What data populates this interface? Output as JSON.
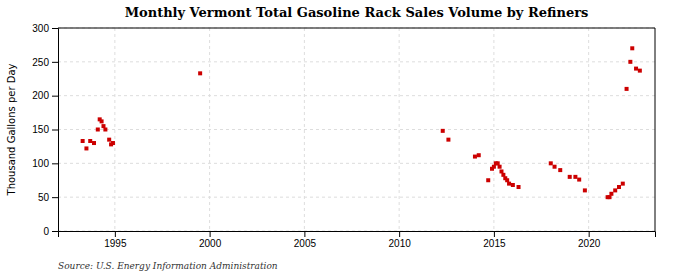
{
  "chart_data": {
    "type": "scatter",
    "title": "Monthly Vermont Total Gasoline Rack Sales Volume by Refiners",
    "ylabel": "Thousand Gallons per Day",
    "annotations": [
      "Source: U.S. Energy Information Administration"
    ],
    "color": "#cc0000",
    "marker": "square",
    "grid": true,
    "xlim": [
      1992.0,
      2023.5
    ],
    "ylim": [
      0,
      300
    ],
    "xticks": [
      1995,
      2000,
      2005,
      2010,
      2015,
      2020
    ],
    "yticks": [
      0,
      50,
      100,
      150,
      200,
      250,
      300
    ],
    "x": [
      1993.3,
      1993.5,
      1993.7,
      1993.9,
      1994.1,
      1994.2,
      1994.3,
      1994.4,
      1994.5,
      1994.7,
      1994.8,
      1994.9,
      1999.5,
      2012.3,
      2012.6,
      2014.0,
      2014.2,
      2014.7,
      2014.9,
      2015.0,
      2015.1,
      2015.2,
      2015.3,
      2015.4,
      2015.5,
      2015.6,
      2015.7,
      2015.8,
      2016.0,
      2016.3,
      2018.0,
      2018.2,
      2018.5,
      2019.0,
      2019.3,
      2019.5,
      2019.8,
      2021.0,
      2021.1,
      2021.2,
      2021.4,
      2021.6,
      2021.8,
      2022.0,
      2022.2,
      2022.3,
      2022.5,
      2022.7
    ],
    "values": [
      133,
      122,
      133,
      130,
      150,
      165,
      162,
      155,
      150,
      135,
      128,
      130,
      233,
      148,
      135,
      110,
      112,
      75,
      92,
      95,
      100,
      100,
      95,
      88,
      83,
      78,
      75,
      70,
      68,
      65,
      100,
      95,
      90,
      80,
      80,
      76,
      60,
      50,
      50,
      55,
      60,
      65,
      70,
      210,
      250,
      270,
      240,
      237
    ]
  }
}
